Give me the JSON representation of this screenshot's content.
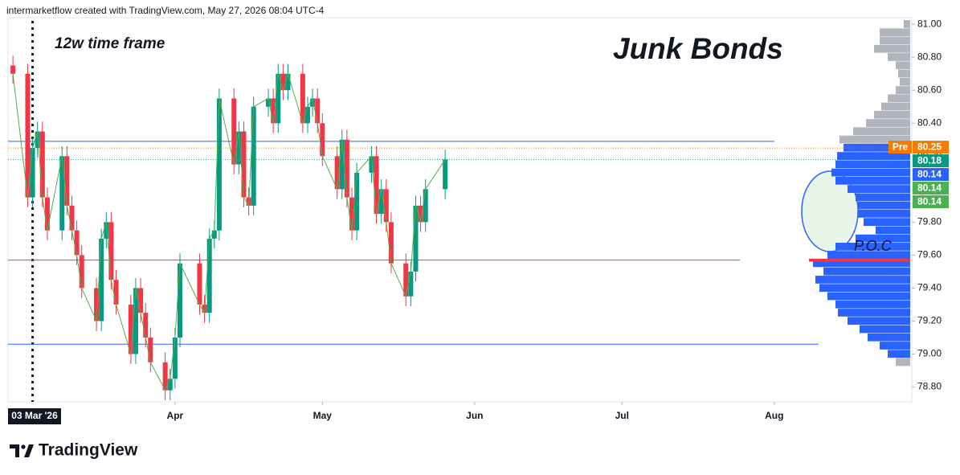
{
  "chart_data": {
    "type": "candlestick",
    "header": "intermarketflow created with TradingView.com, May 27, 2026 08:04 UTC-4",
    "title": "Junk Bonds",
    "subtitle": "12w time frame",
    "annotation": "P.O.C",
    "brand": "TradingView",
    "x": [
      "2026-02-27",
      "2026-03-02",
      "2026-03-03",
      "2026-03-04",
      "2026-03-05",
      "2026-03-06",
      "2026-03-09",
      "2026-03-10",
      "2026-03-11",
      "2026-03-12",
      "2026-03-13",
      "2026-03-16",
      "2026-03-17",
      "2026-03-18",
      "2026-03-19",
      "2026-03-20",
      "2026-03-23",
      "2026-03-24",
      "2026-03-25",
      "2026-03-26",
      "2026-03-27",
      "2026-03-30",
      "2026-03-31",
      "2026-04-01",
      "2026-04-02",
      "2026-04-06",
      "2026-04-07",
      "2026-04-08",
      "2026-04-09",
      "2026-04-10",
      "2026-04-13",
      "2026-04-14",
      "2026-04-15",
      "2026-04-16",
      "2026-04-17",
      "2026-04-20",
      "2026-04-21",
      "2026-04-22",
      "2026-04-23",
      "2026-04-24",
      "2026-04-27",
      "2026-04-28",
      "2026-04-29",
      "2026-04-30",
      "2026-05-01",
      "2026-05-04",
      "2026-05-05",
      "2026-05-06",
      "2026-05-07",
      "2026-05-08",
      "2026-05-11",
      "2026-05-12",
      "2026-05-13",
      "2026-05-14",
      "2026-05-15",
      "2026-05-18",
      "2026-05-19",
      "2026-05-20",
      "2026-05-21",
      "2026-05-22",
      "2026-05-26"
    ],
    "open": [
      80.75,
      80.7,
      79.95,
      80.25,
      80.35,
      79.95,
      79.75,
      80.2,
      79.9,
      79.75,
      79.6,
      79.4,
      79.2,
      79.7,
      79.8,
      79.45,
      79.3,
      79.0,
      79.4,
      79.25,
      79.1,
      78.95,
      78.78,
      78.85,
      79.1,
      79.55,
      79.3,
      79.25,
      79.7,
      79.75,
      80.55,
      80.15,
      80.35,
      79.95,
      79.9,
      80.5,
      80.55,
      80.4,
      80.7,
      80.6,
      80.7,
      80.4,
      80.5,
      80.55,
      80.4,
      80.2,
      80.0,
      80.3,
      79.95,
      79.75,
      80.1,
      80.2,
      79.85,
      80.0,
      79.8,
      79.55,
      79.35,
      79.5,
      79.9,
      79.8,
      80.0
    ],
    "high": [
      80.81,
      80.76,
      80.31,
      80.41,
      80.41,
      80.01,
      80.26,
      80.26,
      79.96,
      79.81,
      79.66,
      79.46,
      79.76,
      79.86,
      79.86,
      79.51,
      79.36,
      79.46,
      79.46,
      79.31,
      79.16,
      79.01,
      78.91,
      79.16,
      79.61,
      79.61,
      79.36,
      79.76,
      79.81,
      80.61,
      80.61,
      80.41,
      80.41,
      80.01,
      80.56,
      80.61,
      80.61,
      80.76,
      80.76,
      80.76,
      80.76,
      80.56,
      80.61,
      80.61,
      80.46,
      80.26,
      80.36,
      80.36,
      80.01,
      80.16,
      80.26,
      80.26,
      80.06,
      80.06,
      79.86,
      79.61,
      79.56,
      79.96,
      79.96,
      80.06,
      80.24
    ],
    "low": [
      80.64,
      79.89,
      79.89,
      80.19,
      79.89,
      79.69,
      79.69,
      79.84,
      79.69,
      79.54,
      79.34,
      79.14,
      79.14,
      79.64,
      79.39,
      79.24,
      78.94,
      78.94,
      79.19,
      79.04,
      78.89,
      78.72,
      78.72,
      78.79,
      79.04,
      79.24,
      79.19,
      79.19,
      79.64,
      79.69,
      80.09,
      80.09,
      79.89,
      79.84,
      79.84,
      80.44,
      80.34,
      80.34,
      80.54,
      80.54,
      80.34,
      80.34,
      80.44,
      80.34,
      80.14,
      79.94,
      79.94,
      79.89,
      79.69,
      79.69,
      80.04,
      79.79,
      79.79,
      79.74,
      79.49,
      79.29,
      79.29,
      79.44,
      79.74,
      79.74,
      79.94
    ],
    "close": [
      80.7,
      79.95,
      80.25,
      80.35,
      79.95,
      79.75,
      80.2,
      79.9,
      79.75,
      79.6,
      79.4,
      79.2,
      79.7,
      79.8,
      79.45,
      79.3,
      79.0,
      79.4,
      79.25,
      79.1,
      78.95,
      78.78,
      78.85,
      79.1,
      79.55,
      79.3,
      79.25,
      79.7,
      79.75,
      80.55,
      80.15,
      80.35,
      79.95,
      79.9,
      80.5,
      80.55,
      80.4,
      80.7,
      80.6,
      80.7,
      80.4,
      80.5,
      80.55,
      80.4,
      80.2,
      80.0,
      80.3,
      79.95,
      79.75,
      80.1,
      80.2,
      79.85,
      80.0,
      79.8,
      79.55,
      79.35,
      79.5,
      79.9,
      79.8,
      80.0,
      80.18
    ],
    "up_color": "#089981",
    "down_color": "#f23645",
    "line_color": "#4caf50",
    "xlim": [
      "2026-02-26",
      "2026-08-29"
    ],
    "xticks": [
      {
        "value": "2026-03-03",
        "label": "03 Mar '26"
      },
      {
        "value": "2026-04-01",
        "label": "Apr"
      },
      {
        "value": "2026-05-01",
        "label": "May"
      },
      {
        "value": "2026-06-01",
        "label": "Jun"
      },
      {
        "value": "2026-07-01",
        "label": "Jul"
      },
      {
        "value": "2026-08-01",
        "label": "Aug"
      }
    ],
    "ylim": [
      78.71,
      81.04
    ],
    "yticks": [
      {
        "value": 78.8,
        "label": "78.80"
      },
      {
        "value": 79.0,
        "label": "79.00"
      },
      {
        "value": 79.2,
        "label": "79.20"
      },
      {
        "value": 79.4,
        "label": "79.40"
      },
      {
        "value": 79.6,
        "label": "79.60"
      },
      {
        "value": 79.8,
        "label": "79.80"
      },
      {
        "value": 80.0,
        "label": "80.00"
      },
      {
        "value": 80.2,
        "label": "80.20"
      },
      {
        "value": 80.4,
        "label": "80.40"
      },
      {
        "value": 80.6,
        "label": "80.60"
      },
      {
        "value": 80.8,
        "label": "80.80"
      },
      {
        "value": 81.0,
        "label": "81.00"
      }
    ],
    "hlines": [
      {
        "value": 80.29,
        "color": "#2962ff",
        "end": "2026-08-01"
      },
      {
        "value": 79.57,
        "color": "#f23645",
        "end": "2026-07-25"
      },
      {
        "value": 79.06,
        "color": "#2962ff",
        "end": "2026-08-10"
      }
    ],
    "poc": 79.57,
    "price_labels": [
      {
        "tag": "Pre",
        "value": 80.25,
        "color": "#f57c00"
      },
      {
        "value": 80.18,
        "color": "#089981"
      },
      {
        "value": 80.14,
        "color": "#2962ff"
      },
      {
        "value": 80.14,
        "color": "#4caf50"
      },
      {
        "value": 80.14,
        "color": "#4caf50"
      }
    ],
    "volume_profile": {
      "upper": {
        "color": "#b2b5be",
        "prices": [
          81.0,
          80.95,
          80.9,
          80.85,
          80.8,
          80.75,
          80.7,
          80.65,
          80.6,
          80.55,
          80.5,
          80.45,
          80.4,
          80.35,
          80.3
        ],
        "volumes": [
          8,
          38,
          38,
          45,
          28,
          18,
          15,
          13,
          18,
          28,
          36,
          45,
          55,
          71,
          88
        ]
      },
      "lower": {
        "color": "#2962ff",
        "prices": [
          80.25,
          80.2,
          80.15,
          80.1,
          80.05,
          80.0,
          79.95,
          79.9,
          79.85,
          79.8,
          79.75,
          79.7,
          79.65,
          79.6,
          79.55,
          79.5,
          79.45,
          79.4,
          79.35,
          79.3,
          79.25,
          79.2,
          79.15,
          79.1,
          79.05,
          79.0
        ],
        "volumes": [
          83,
          91,
          93,
          98,
          93,
          78,
          68,
          65,
          65,
          58,
          43,
          68,
          93,
          103,
          121,
          108,
          118,
          113,
          103,
          93,
          90,
          78,
          63,
          53,
          38,
          28
        ]
      },
      "tail": {
        "color": "#b2b5be",
        "prices": [
          78.95
        ],
        "volumes": [
          18
        ]
      }
    }
  }
}
